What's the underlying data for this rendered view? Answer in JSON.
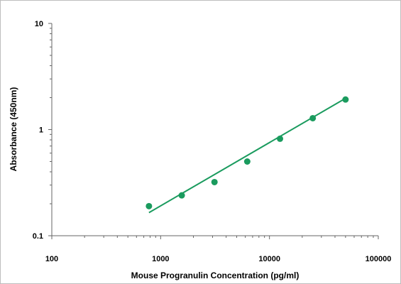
{
  "chart_data": {
    "type": "scatter",
    "title": "",
    "xlabel": "Mouse Progranulin Concentration (pg/ml)",
    "ylabel": "Absorbance (450nm)",
    "x_scale": "log",
    "y_scale": "log",
    "xlim": [
      100,
      100000
    ],
    "ylim": [
      0.1,
      10
    ],
    "x_ticks": [
      {
        "value": 100,
        "label": "100"
      },
      {
        "value": 1000,
        "label": "1000"
      },
      {
        "value": 10000,
        "label": "10000"
      },
      {
        "value": 100000,
        "label": "100000"
      }
    ],
    "y_ticks": [
      {
        "value": 0.1,
        "label": "0.1"
      },
      {
        "value": 1,
        "label": "1"
      },
      {
        "value": 10,
        "label": "10"
      }
    ],
    "grid": false,
    "legend": "none",
    "series": [
      {
        "color": "#1a9b5e",
        "points": [
          {
            "x": 781,
            "y": 0.19
          },
          {
            "x": 1563,
            "y": 0.24
          },
          {
            "x": 3125,
            "y": 0.32
          },
          {
            "x": 6250,
            "y": 0.5
          },
          {
            "x": 12500,
            "y": 0.82
          },
          {
            "x": 25000,
            "y": 1.28
          },
          {
            "x": 50000,
            "y": 1.92
          }
        ],
        "fit_line": {
          "x_start": 781,
          "y_start": 0.165,
          "x_end": 50000,
          "y_end": 1.97
        }
      }
    ]
  }
}
